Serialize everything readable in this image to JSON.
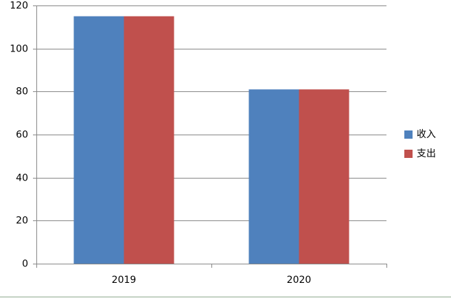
{
  "chart_data": {
    "type": "bar",
    "categories": [
      "2019",
      "2020"
    ],
    "series": [
      {
        "name": "收入",
        "color": "#4f81bd",
        "values": [
          115,
          81
        ]
      },
      {
        "name": "支出",
        "color": "#c0504d",
        "values": [
          115,
          81
        ]
      }
    ],
    "ylim": [
      0,
      120
    ],
    "yticks": [
      0,
      20,
      40,
      60,
      80,
      100,
      120
    ],
    "grid": true,
    "legend": "right"
  }
}
